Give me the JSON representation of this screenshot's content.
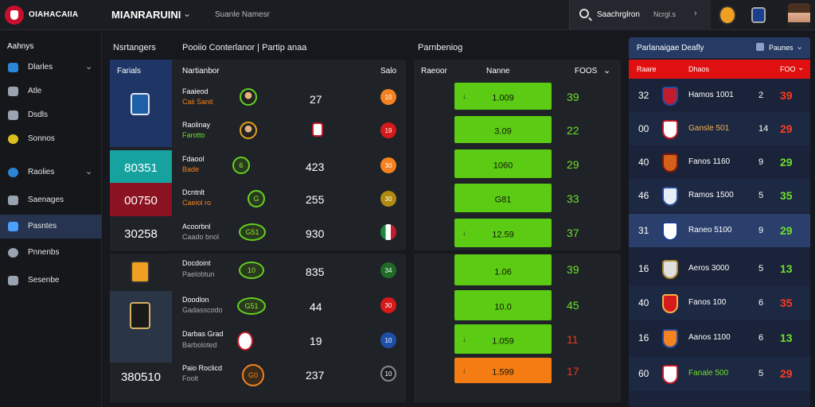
{
  "header": {
    "brand": "OIAHACAIIA",
    "league": "MIANRARUINI",
    "subnav": "Suanle Namesr",
    "search_text": "Saachrglron",
    "search_sub": "Ncrgl.s"
  },
  "sidebar": {
    "heading": "Aahnys",
    "items": [
      {
        "label": "Dlarles",
        "chev": "⌄"
      },
      {
        "label": "Atle",
        "chev": ""
      },
      {
        "label": "Dsdls",
        "chev": ""
      },
      {
        "label": "Sonnos",
        "chev": ""
      },
      {
        "label": "Raolies",
        "chev": "⌄"
      },
      {
        "label": "Saenages",
        "chev": ""
      },
      {
        "label": "Pasntes",
        "chev": ""
      },
      {
        "label": "Pnnenbs",
        "chev": ""
      },
      {
        "label": "Sesenbe",
        "chev": ""
      }
    ]
  },
  "left_panel": {
    "title": "Nsrtangers",
    "title2": "Pooiio Conterlanor | Partip anaa",
    "col1": "Farials",
    "col2": "Nartianbor",
    "col3": "Salo",
    "team_cells": [
      "",
      "80351",
      "00750",
      "30258",
      "",
      "",
      "",
      "380510"
    ],
    "rows": [
      {
        "n1": "Faaieod",
        "n2": "Caii Sanit",
        "score": "27",
        "pill": "10"
      },
      {
        "n1": "Raolinay",
        "n2": "Farotto",
        "score": "",
        "pill": "19"
      },
      {
        "n1": "Fdaool",
        "n2": "Bade",
        "score": "423",
        "pill": "30"
      },
      {
        "n1": "Dcntnlt",
        "n2": "Caeiol ro",
        "score": "255",
        "pill": "30"
      },
      {
        "n1": "Acoorbnl",
        "n2": "Caado bnol",
        "score": "930",
        "pill": "",
        "icon": "G51"
      },
      {
        "n1": "Docdoint",
        "n2": "Paelobtun",
        "score": "835",
        "pill": "34",
        "icon": "10"
      },
      {
        "n1": "Doodlon",
        "n2": "Gadasscodo",
        "score": "44",
        "pill": "30",
        "icon": "G51"
      },
      {
        "n1": "Darbas Grad",
        "n2": "Barboloted",
        "score": "19",
        "pill": "10"
      },
      {
        "n1": "Paio Roclicd",
        "n2": "Foolt",
        "score": "237",
        "pill": "10",
        "icon": "G0"
      }
    ]
  },
  "mid_panel": {
    "title": "Parnbeniog",
    "col1": "Raeoor",
    "col2": "Nanne",
    "col3": "FOOS",
    "rows": [
      {
        "val": "1.009",
        "pts": "39"
      },
      {
        "val": "3.09",
        "pts": "22"
      },
      {
        "val": "1060",
        "pts": "29"
      },
      {
        "val": "G81",
        "pts": "33"
      },
      {
        "val": "12.59",
        "pts": "37"
      },
      {
        "val": "1.06",
        "pts": "39"
      },
      {
        "val": "10.0",
        "pts": "45"
      },
      {
        "val": "1.059",
        "pts": "11"
      },
      {
        "val": "1.599",
        "pts": "17"
      }
    ]
  },
  "right_table": {
    "title": "Parlanaigae Deafly",
    "filter": "Paunes",
    "col1": "Raare",
    "col2": "Dhaos",
    "col3": "FOO",
    "rows": [
      {
        "num": "32",
        "name": "Hamos 1001",
        "w": "2",
        "pts": "39"
      },
      {
        "num": "00",
        "name": "Gansle 501",
        "w": "14",
        "pts": "29"
      },
      {
        "num": "40",
        "name": "Fanos 1160",
        "w": "9",
        "pts": "29"
      },
      {
        "num": "46",
        "name": "Ramos 1500",
        "w": "5",
        "pts": "35"
      },
      {
        "num": "31",
        "name": "Raneo 5100",
        "w": "9",
        "pts": "29"
      },
      {
        "num": "16",
        "name": "Aeros 3000",
        "w": "5",
        "pts": "13"
      },
      {
        "num": "40",
        "name": "Fanos 100",
        "w": "6",
        "pts": "35"
      },
      {
        "num": "16",
        "name": "Aanos 1100",
        "w": "6",
        "pts": "13"
      },
      {
        "num": "60",
        "name": "Fanale 500",
        "w": "5",
        "pts": "29"
      }
    ]
  }
}
